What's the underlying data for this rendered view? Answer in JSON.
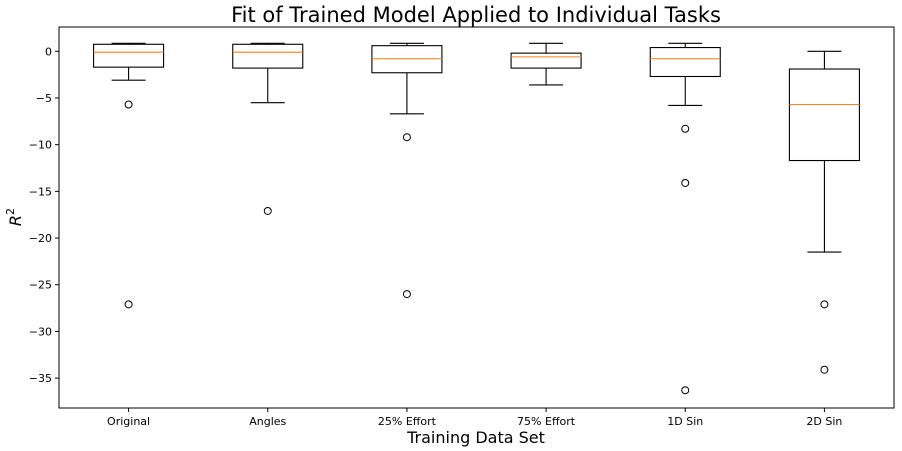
{
  "chart_data": {
    "type": "boxplot",
    "title": "Fit of Trained Model Applied to Individual Tasks",
    "xlabel": "Training Data Set",
    "ylabel": "R",
    "ylabel_superscript": "2",
    "ylim": [
      -38.2,
      2.6
    ],
    "yticks": [
      0,
      -5,
      -10,
      -15,
      -20,
      -25,
      -30,
      -35
    ],
    "grid": false,
    "median_color": "#ff7f0e",
    "box_color": "#000000",
    "categories": [
      "Original",
      "Angles",
      "25% Effort",
      "75% Effort",
      "1D Sin",
      "2D Sin"
    ],
    "boxes": [
      {
        "category": "Original",
        "whisker_low": -3.1,
        "q1": -1.7,
        "median": -0.1,
        "q3": 0.75,
        "whisker_high": 0.85,
        "outliers": [
          -5.7,
          -27.1
        ]
      },
      {
        "category": "Angles",
        "whisker_low": -5.5,
        "q1": -1.8,
        "median": -0.1,
        "q3": 0.75,
        "whisker_high": 0.85,
        "outliers": [
          -17.1
        ]
      },
      {
        "category": "25% Effort",
        "whisker_low": -6.7,
        "q1": -2.3,
        "median": -0.8,
        "q3": 0.6,
        "whisker_high": 0.85,
        "outliers": [
          -9.2,
          -26.0
        ]
      },
      {
        "category": "75% Effort",
        "whisker_low": -3.6,
        "q1": -1.8,
        "median": -0.6,
        "q3": -0.2,
        "whisker_high": 0.85,
        "outliers": []
      },
      {
        "category": "1D Sin",
        "whisker_low": -5.8,
        "q1": -2.7,
        "median": -0.8,
        "q3": 0.4,
        "whisker_high": 0.85,
        "outliers": [
          -8.3,
          -14.1,
          -36.3
        ]
      },
      {
        "category": "2D Sin",
        "whisker_low": -21.5,
        "q1": -11.7,
        "median": -5.7,
        "q3": -1.9,
        "whisker_high": 0.0,
        "outliers": [
          -27.1,
          -34.1
        ]
      }
    ]
  }
}
